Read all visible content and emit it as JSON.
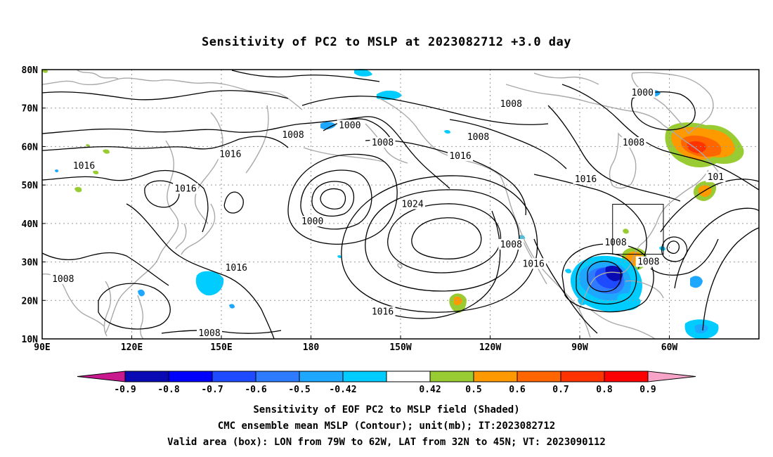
{
  "title": "Sensitivity of PC2 to MSLP at 2023082712 +3.0 day",
  "map": {
    "lat_labels": [
      "80N",
      "70N",
      "60N",
      "50N",
      "40N",
      "30N",
      "20N",
      "10N"
    ],
    "lon_labels": [
      "90E",
      "120E",
      "150E",
      "180",
      "150W",
      "120W",
      "90W",
      "60W"
    ],
    "contour_labels": [
      {
        "text": "1008",
        "lon": -113,
        "lat": 71
      },
      {
        "text": "1000",
        "lon": -167,
        "lat": 65.5
      },
      {
        "text": "1008",
        "lon": 174,
        "lat": 63
      },
      {
        "text": "1008",
        "lon": -124,
        "lat": 62.5
      },
      {
        "text": "1008",
        "lon": -156,
        "lat": 61
      },
      {
        "text": "1016",
        "lon": 153,
        "lat": 58
      },
      {
        "text": "1016",
        "lon": -130,
        "lat": 57.5
      },
      {
        "text": "1008",
        "lon": -72,
        "lat": 61
      },
      {
        "text": "1000",
        "lon": -69,
        "lat": 74
      },
      {
        "text": "1016",
        "lon": 104,
        "lat": 55
      },
      {
        "text": "1016",
        "lon": 138,
        "lat": 49
      },
      {
        "text": "1016",
        "lon": -88,
        "lat": 51.5
      },
      {
        "text": "101",
        "lon": -44.5,
        "lat": 52
      },
      {
        "text": "1024",
        "lon": -146,
        "lat": 45
      },
      {
        "text": "1000",
        "lon": 180.5,
        "lat": 40.5
      },
      {
        "text": "1008",
        "lon": -113,
        "lat": 34.5
      },
      {
        "text": "1008",
        "lon": -78,
        "lat": 35
      },
      {
        "text": "1008",
        "lon": -67,
        "lat": 30
      },
      {
        "text": "1016",
        "lon": 155,
        "lat": 28.5
      },
      {
        "text": "1016",
        "lon": -105.5,
        "lat": 29.5
      },
      {
        "text": "1008",
        "lon": 97,
        "lat": 25.5
      },
      {
        "text": "1016",
        "lon": -156,
        "lat": 17
      },
      {
        "text": "1008",
        "lon": 146,
        "lat": 11.5
      }
    ],
    "valid_box": {
      "lon_w": -79,
      "lon_e": -62,
      "lat_s": 32,
      "lat_n": 45
    }
  },
  "colorbar": {
    "labels": [
      "-0.9",
      "-0.8",
      "-0.7",
      "-0.6",
      "-0.5",
      "-0.42",
      "0.42",
      "0.5",
      "0.6",
      "0.7",
      "0.8",
      "0.9"
    ],
    "low_extend_color": "#c9198e",
    "high_extend_color": "#f7a4c8",
    "colors": [
      "#0a0ab4",
      "#0000ff",
      "#1e4bff",
      "#2e7bff",
      "#1ea7ff",
      "#00ccff",
      "#ffffff",
      "#99cc33",
      "#ff9900",
      "#ff6600",
      "#ff3300",
      "#ff0000"
    ]
  },
  "captions": [
    "Sensitivity of EOF PC2 to MSLP field (Shaded)",
    "CMC ensemble mean MSLP (Contour); unit(mb); IT:2023082712",
    "Valid area (box): LON from 79W to 62W, LAT from 32N to 45N; VT: 2023090112"
  ]
}
